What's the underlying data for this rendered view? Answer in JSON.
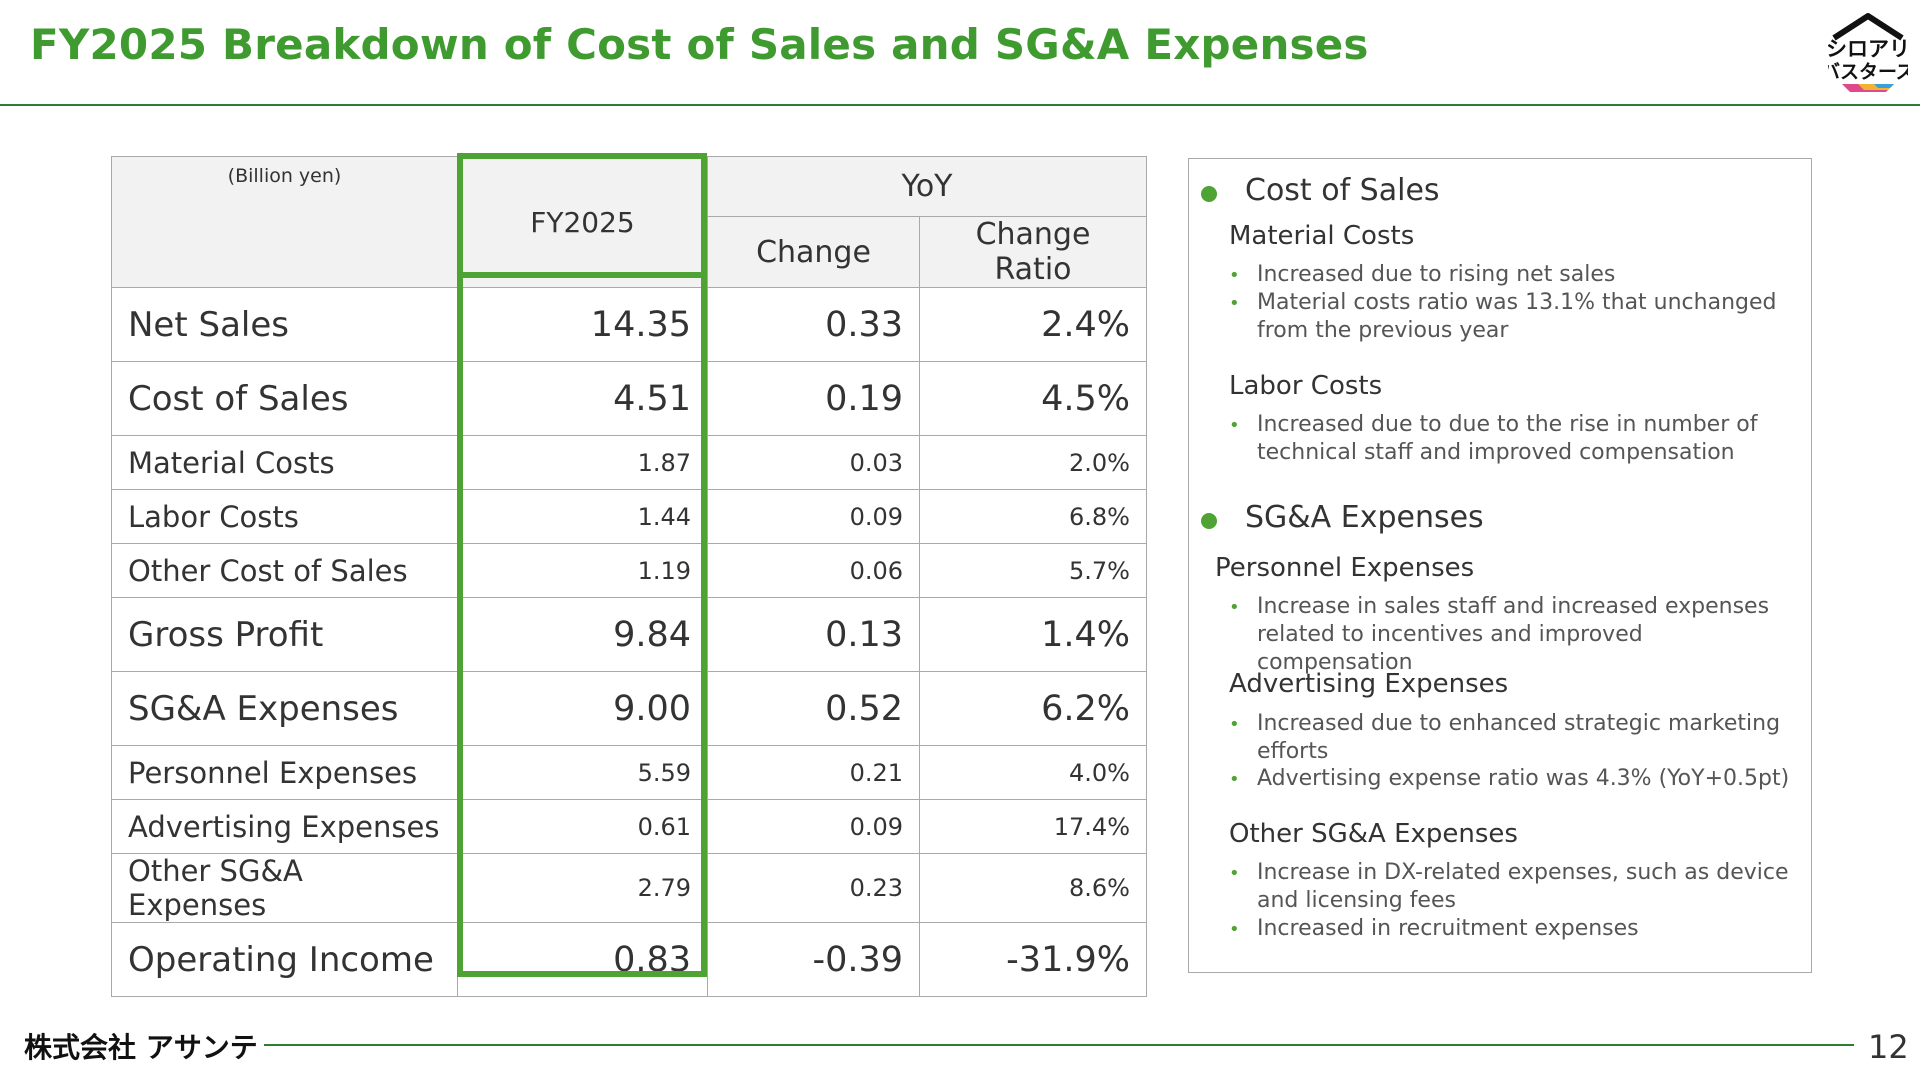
{
  "title": "FY2025 Breakdown of Cost of Sales and SG&A Expenses",
  "logo": {
    "text_line1": "シロアリ",
    "text_line2": "バスターズ",
    "name": "shiroari-busters-logo"
  },
  "table": {
    "unit": "(Billion yen)",
    "col_fy": "FY2025",
    "col_yoy": "YoY",
    "col_change": "Change",
    "col_ratio": "Change Ratio",
    "rows": [
      {
        "label": "Net Sales",
        "fy": "14.35",
        "change": "0.33",
        "ratio": "2.4%",
        "major": true
      },
      {
        "label": "Cost of Sales",
        "fy": "4.51",
        "change": "0.19",
        "ratio": "4.5%",
        "major": true
      },
      {
        "label": "Material Costs",
        "fy": "1.87",
        "change": "0.03",
        "ratio": "2.0%",
        "major": false
      },
      {
        "label": "Labor Costs",
        "fy": "1.44",
        "change": "0.09",
        "ratio": "6.8%",
        "major": false
      },
      {
        "label": "Other Cost of Sales",
        "fy": "1.19",
        "change": "0.06",
        "ratio": "5.7%",
        "major": false
      },
      {
        "label": "Gross Profit",
        "fy": "9.84",
        "change": "0.13",
        "ratio": "1.4%",
        "major": true
      },
      {
        "label": "SG&A Expenses",
        "fy": "9.00",
        "change": "0.52",
        "ratio": "6.2%",
        "major": true
      },
      {
        "label": "Personnel Expenses",
        "fy": "5.59",
        "change": "0.21",
        "ratio": "4.0%",
        "major": false
      },
      {
        "label": "Advertising Expenses",
        "fy": "0.61",
        "change": "0.09",
        "ratio": "17.4%",
        "major": false
      },
      {
        "label": "Other SG&A Expenses",
        "fy": "2.79",
        "change": "0.23",
        "ratio": "8.6%",
        "major": false
      },
      {
        "label": "Operating Income",
        "fy": "0.83",
        "change": "-0.39",
        "ratio": "-31.9%",
        "major": true
      }
    ]
  },
  "panel": {
    "cos": {
      "title": "Cost of Sales",
      "material_title": "Material Costs",
      "material_b1": "Increased due to rising net sales",
      "material_b2": "Material costs ratio was 13.1% that unchanged from the previous year",
      "labor_title": "Labor Costs",
      "labor_b1": "Increased due to due to the rise in number of technical staff and improved compensation"
    },
    "sga": {
      "title": "SG&A Expenses",
      "personnel_title": "Personnel Expenses",
      "personnel_b1": "Increase in sales staff and increased expenses related to incentives and improved compensation",
      "adv_title": "Advertising Expenses",
      "adv_b1": "Increased due to enhanced strategic marketing efforts",
      "adv_b2": "Advertising expense ratio was 4.3% (YoY+0.5pt)",
      "other_title": "Other SG&A Expenses",
      "other_b1": "Increase in DX-related expenses, such as device and licensing fees",
      "other_b2": "Increased in recruitment expenses"
    }
  },
  "footer": {
    "company": "株式会社 アサンテ",
    "page": "12"
  }
}
